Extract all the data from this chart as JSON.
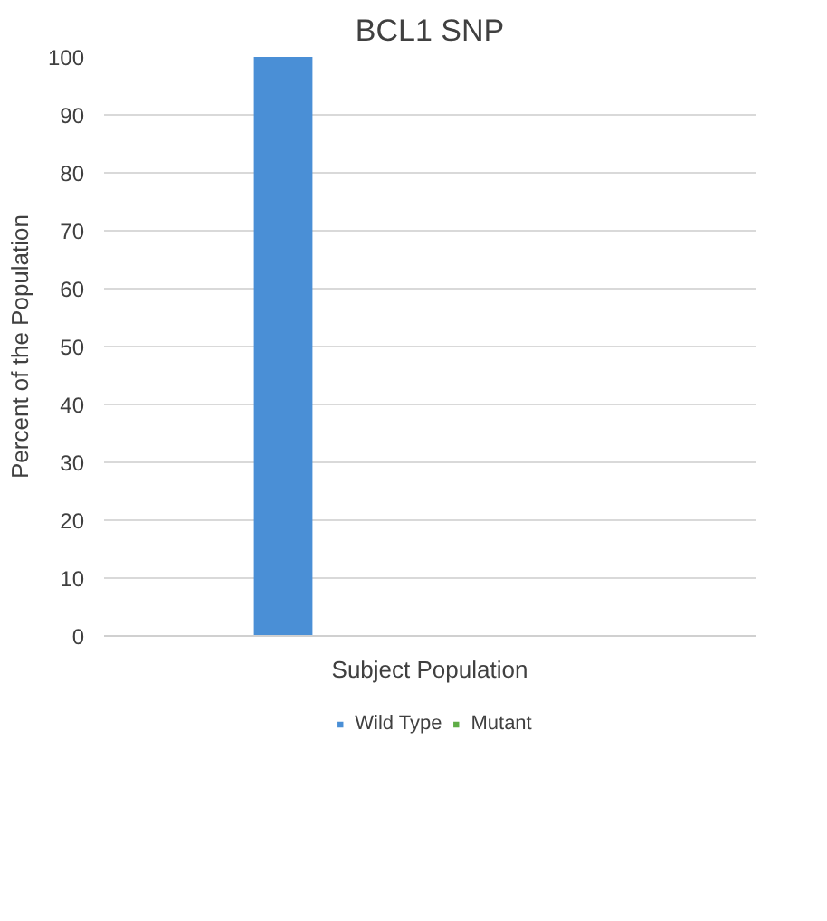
{
  "chart_data": {
    "type": "bar",
    "title": "BCL1 SNP",
    "xlabel": "Subject Population",
    "ylabel": "Percent of the Population",
    "categories": [
      null
    ],
    "series": [
      {
        "name": "Wild Type",
        "color": "#4a8fd6",
        "values": [
          100
        ]
      },
      {
        "name": "Mutant",
        "color": "#5fad46",
        "values": [
          0
        ]
      }
    ],
    "ylim": [
      0,
      100
    ],
    "yticks": [
      0,
      10,
      20,
      30,
      40,
      50,
      60,
      70,
      80,
      90,
      100
    ],
    "grid": "y",
    "legend": "bottom"
  }
}
